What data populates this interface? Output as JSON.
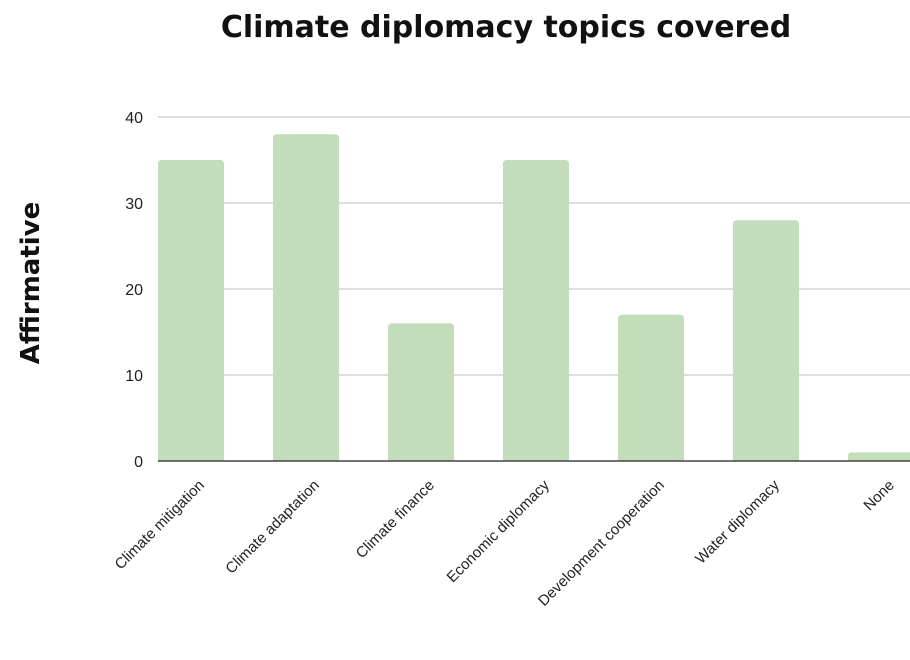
{
  "chart_data": {
    "type": "bar",
    "title": "Climate diplomacy topics covered",
    "xlabel": "",
    "ylabel": "Affirmative",
    "categories": [
      "Climate mitigation",
      "Climate adaptation",
      "Climate finance",
      "Economic diplomacy",
      "Development cooperation",
      "Water diplomacy",
      "None"
    ],
    "values": [
      35,
      38,
      16,
      35,
      17,
      28,
      1
    ],
    "ylim": [
      0,
      40
    ],
    "yticks": [
      0,
      10,
      20,
      30,
      40
    ],
    "grid": true,
    "bar_color": "#c1ddb9",
    "gridline_color": "#bdbdbd",
    "axis_color": "#444444"
  }
}
